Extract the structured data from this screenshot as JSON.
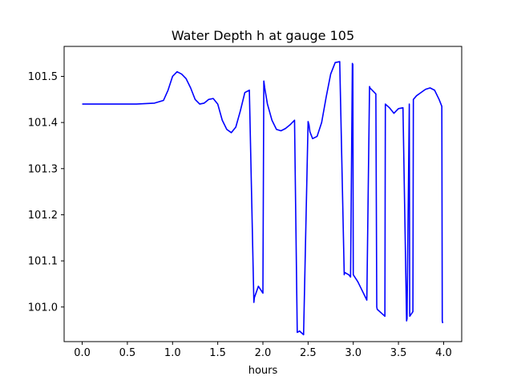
{
  "chart_data": {
    "type": "line",
    "title": "Water Depth h at gauge 105",
    "xlabel": "hours",
    "ylabel": "",
    "xlim": [
      -0.2,
      4.2
    ],
    "ylim": [
      100.925,
      101.565
    ],
    "x_ticks": [
      0.0,
      0.5,
      1.0,
      1.5,
      2.0,
      2.5,
      3.0,
      3.5,
      4.0
    ],
    "x_tick_labels": [
      "0.0",
      "0.5",
      "1.0",
      "1.5",
      "2.0",
      "2.5",
      "3.0",
      "3.5",
      "4.0"
    ],
    "y_ticks": [
      101.0,
      101.1,
      101.2,
      101.3,
      101.4,
      101.5
    ],
    "y_tick_labels": [
      "101.0",
      "101.1",
      "101.2",
      "101.3",
      "101.4",
      "101.5"
    ],
    "grid": false,
    "legend": "none",
    "series": [
      {
        "color": "#0000ff",
        "x": [
          0.0,
          0.3,
          0.6,
          0.8,
          0.9,
          0.95,
          1.0,
          1.05,
          1.1,
          1.15,
          1.2,
          1.25,
          1.3,
          1.35,
          1.4,
          1.45,
          1.5,
          1.55,
          1.6,
          1.65,
          1.7,
          1.75,
          1.8,
          1.85,
          1.9,
          1.905,
          1.95,
          2.0,
          2.01,
          2.02,
          2.05,
          2.1,
          2.15,
          2.2,
          2.25,
          2.3,
          2.35,
          2.38,
          2.4,
          2.405,
          2.45,
          2.5,
          2.51,
          2.52,
          2.55,
          2.6,
          2.65,
          2.7,
          2.75,
          2.8,
          2.85,
          2.9,
          2.905,
          2.95,
          2.97,
          2.99,
          2.995,
          3.0,
          3.05,
          3.1,
          3.15,
          3.18,
          3.185,
          3.25,
          3.26,
          3.265,
          3.35,
          3.355,
          3.4,
          3.45,
          3.5,
          3.55,
          3.59,
          3.595,
          3.62,
          3.625,
          3.66,
          3.665,
          3.7,
          3.75,
          3.8,
          3.85,
          3.9,
          3.95,
          3.98,
          3.985,
          3.99
        ],
        "y": [
          101.44,
          101.44,
          101.44,
          101.442,
          101.448,
          101.47,
          101.5,
          101.51,
          101.505,
          101.495,
          101.475,
          101.45,
          101.44,
          101.442,
          101.45,
          101.452,
          101.44,
          101.405,
          101.385,
          101.378,
          101.39,
          101.425,
          101.465,
          101.47,
          101.01,
          101.02,
          101.045,
          101.03,
          101.49,
          101.475,
          101.44,
          101.405,
          101.385,
          101.382,
          101.387,
          101.395,
          101.405,
          100.945,
          100.947,
          100.948,
          100.94,
          101.402,
          101.395,
          101.38,
          101.365,
          101.37,
          101.4,
          101.455,
          101.505,
          101.53,
          101.532,
          101.07,
          101.075,
          101.07,
          101.065,
          101.528,
          101.526,
          101.07,
          101.055,
          101.035,
          101.015,
          101.478,
          101.475,
          101.462,
          101.0,
          100.995,
          100.98,
          101.44,
          101.432,
          101.42,
          101.43,
          101.432,
          100.97,
          100.975,
          101.44,
          100.98,
          100.99,
          101.45,
          101.458,
          101.465,
          101.472,
          101.475,
          101.47,
          101.45,
          101.435,
          100.97,
          100.965
        ]
      }
    ]
  }
}
